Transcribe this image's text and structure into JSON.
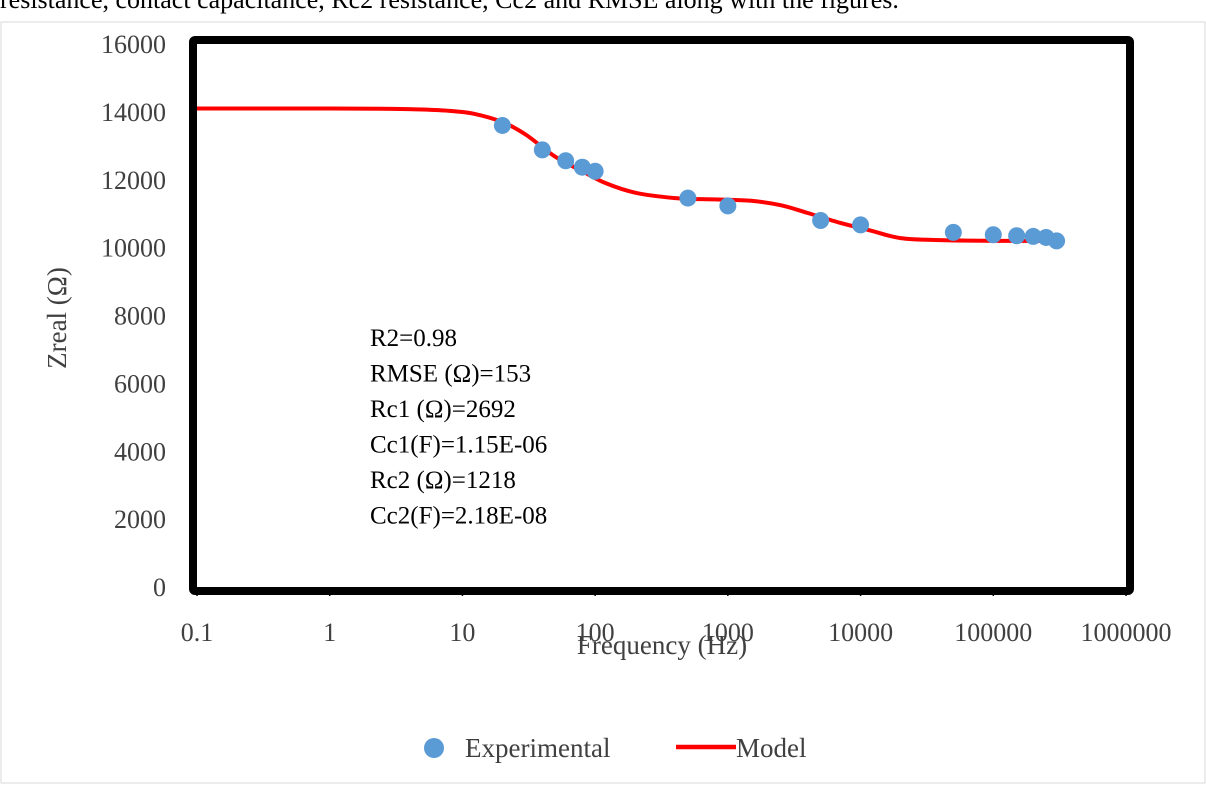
{
  "caption_fragment": "resistance, contact capacitance, Rc2 resistance, Cc2 and RMSE along with the figures.",
  "chart_data": {
    "type": "line",
    "xscale": "log",
    "xlim": [
      0.1,
      1000000
    ],
    "ylim": [
      0,
      16000
    ],
    "xlabel": "Frequency (Hz)",
    "ylabel": "Zreal (Ω)",
    "x_ticks": [
      "0.1",
      "1",
      "10",
      "100",
      "1000",
      "10000",
      "100000",
      "1000000"
    ],
    "y_ticks": [
      "0",
      "2000",
      "4000",
      "6000",
      "8000",
      "10000",
      "12000",
      "14000",
      "16000"
    ],
    "grid": false,
    "legend_position": "bottom",
    "series": [
      {
        "name": "Experimental",
        "kind": "scatter",
        "color": "#5B9BD5",
        "x": [
          20,
          40,
          60,
          80,
          100,
          500,
          1000,
          5000,
          10000,
          50000,
          100000,
          150000,
          200000,
          250000,
          300000
        ],
        "y": [
          13600,
          12880,
          12560,
          12370,
          12250,
          11460,
          11230,
          10800,
          10670,
          10450,
          10380,
          10350,
          10330,
          10300,
          10200
        ]
      },
      {
        "name": "Model",
        "kind": "line",
        "color": "#FF0000",
        "x": [
          0.1,
          1,
          3,
          5,
          8,
          12,
          20,
          30,
          50,
          80,
          120,
          200,
          400,
          800,
          1500,
          2500,
          4000,
          7000,
          12000,
          20000,
          40000,
          100000,
          300000
        ],
        "y": [
          14100,
          14100,
          14090,
          14070,
          14030,
          13950,
          13700,
          13330,
          12680,
          12250,
          11900,
          11620,
          11460,
          11420,
          11380,
          11250,
          11020,
          10730,
          10500,
          10280,
          10220,
          10200,
          10200
        ]
      }
    ],
    "annotations": [
      "R2=0.98",
      "RMSE (Ω)=153",
      "Rc1 (Ω)=2692",
      "Cc1(F)=1.15E-06",
      "Rc2 (Ω)=1218",
      "Cc2(F)=2.18E-08"
    ]
  }
}
